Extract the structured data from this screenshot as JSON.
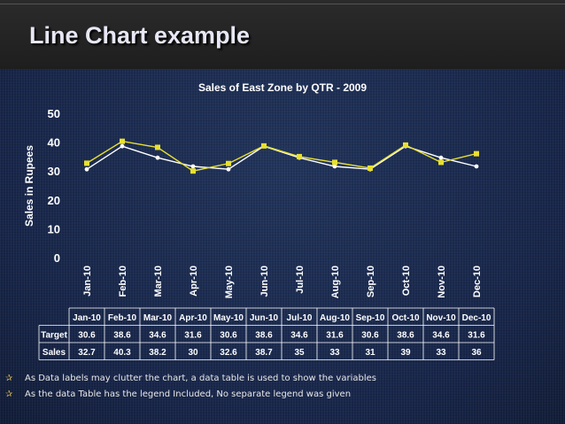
{
  "slide": {
    "title": "Line Chart example",
    "bullets": [
      "As Data labels may clutter the chart, a data table is used to show the variables",
      "As the data Table has the legend Included, No separate legend was given"
    ]
  },
  "colors": {
    "target": "#ffffff",
    "sales": "#e8e030",
    "text": "#ffffff",
    "bullet": "#d8b64a"
  },
  "chart_data": {
    "type": "line",
    "title": "Sales of East Zone by QTR - 2009",
    "xlabel": "",
    "ylabel": "Sales in Rupees",
    "ylim": [
      0,
      50
    ],
    "yticks": [
      "0",
      "10",
      "20",
      "30",
      "40",
      "50"
    ],
    "grid": false,
    "legend": "none",
    "categories": [
      "Jan-10",
      "Feb-10",
      "Mar-10",
      "Apr-10",
      "May-10",
      "Jun-10",
      "Jul-10",
      "Aug-10",
      "Sep-10",
      "Oct-10",
      "Nov-10",
      "Dec-10"
    ],
    "series": [
      {
        "name": "Target",
        "values": [
          30.6,
          38.6,
          34.6,
          31.6,
          30.6,
          38.6,
          34.6,
          31.6,
          30.6,
          38.6,
          34.6,
          31.6
        ]
      },
      {
        "name": "Sales",
        "values": [
          32.7,
          40.3,
          38.2,
          30,
          32.6,
          38.7,
          35,
          33,
          31,
          39,
          33,
          36
        ]
      }
    ],
    "table": {
      "header": [
        "Jan-10",
        "Feb-10",
        "Mar-10",
        "Apr-10",
        "May-10",
        "Jun-10",
        "Jul-10",
        "Aug-10",
        "Sep-10",
        "Oct-10",
        "Nov-10",
        "Dec-10"
      ],
      "rows": [
        {
          "label": "Target",
          "cells": [
            "30.6",
            "38.6",
            "34.6",
            "31.6",
            "30.6",
            "38.6",
            "34.6",
            "31.6",
            "30.6",
            "38.6",
            "34.6",
            "31.6"
          ]
        },
        {
          "label": "Sales",
          "cells": [
            "32.7",
            "40.3",
            "38.2",
            "30",
            "32.6",
            "38.7",
            "35",
            "33",
            "31",
            "39",
            "33",
            "36"
          ]
        }
      ]
    }
  }
}
